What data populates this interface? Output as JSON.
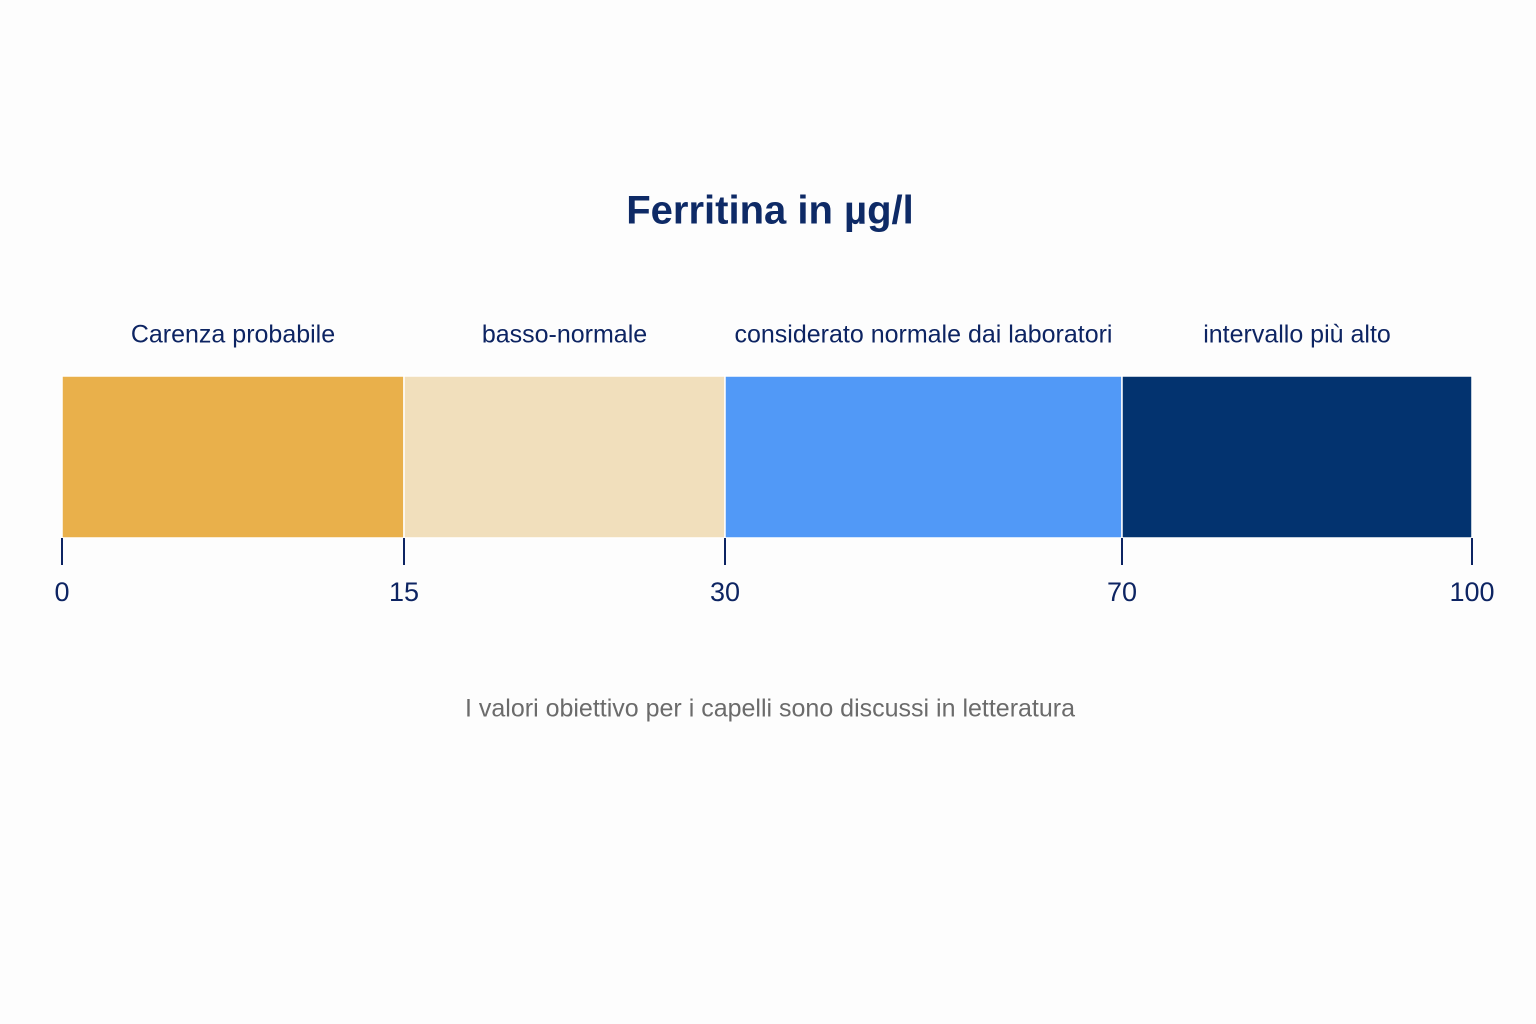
{
  "chart_data": {
    "type": "range",
    "title": "Ferritina in µg/l",
    "boundaries": [
      0,
      15,
      30,
      70,
      100
    ],
    "segments": [
      {
        "name": "Carenza probabile",
        "color": "#e9b04b"
      },
      {
        "name": "basso-normale",
        "color": "#f1dfbc"
      },
      {
        "name": "considerato normale dai laboratori",
        "color": "#5199f7"
      },
      {
        "name": "intervallo più alto",
        "color": "#03336f"
      }
    ],
    "note": "I valori obiettivo per i capelli sono discussi in letteratura"
  }
}
